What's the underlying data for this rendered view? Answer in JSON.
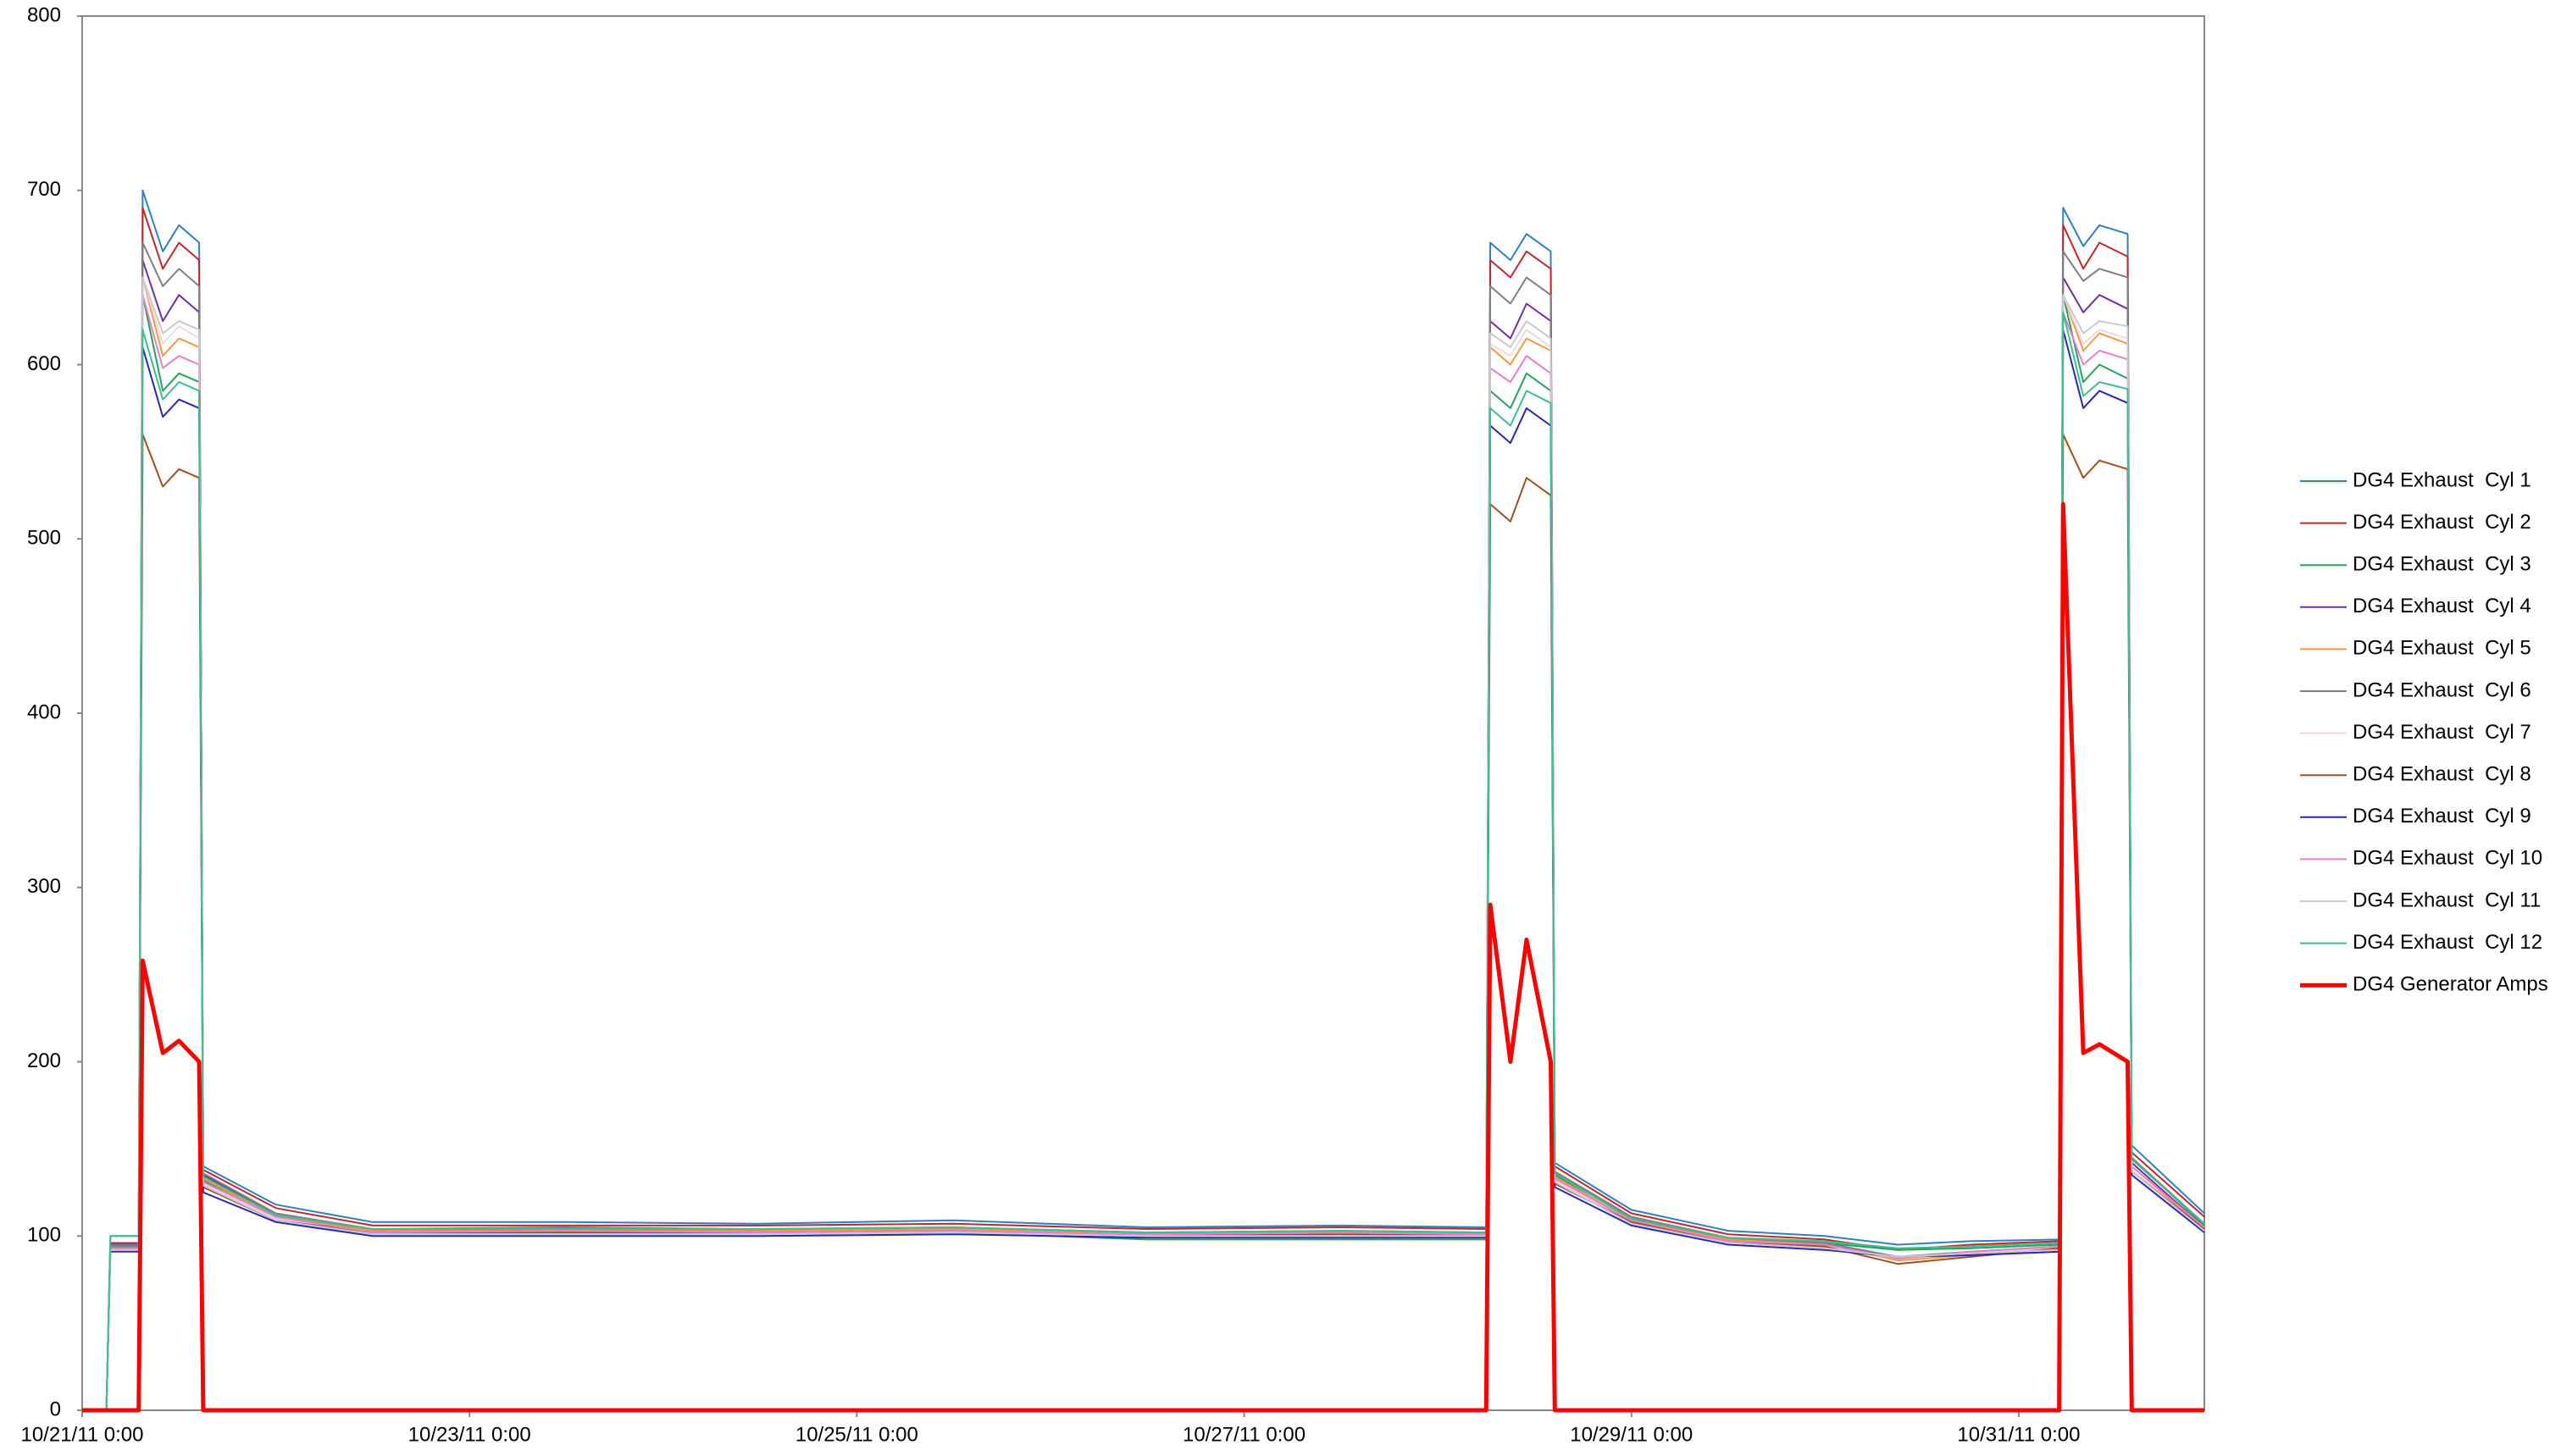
{
  "chart_data": {
    "type": "line",
    "x": [
      "2011-10-21T00:00",
      "2011-10-21T03:00",
      "2011-10-21T03:30",
      "2011-10-21T07:00",
      "2011-10-21T07:30",
      "2011-10-21T10:00",
      "2011-10-21T12:00",
      "2011-10-21T14:30",
      "2011-10-21T15:00",
      "2011-10-22T00:00",
      "2011-10-22T12:00",
      "2011-10-23T12:00",
      "2011-10-24T12:00",
      "2011-10-25T12:00",
      "2011-10-26T12:00",
      "2011-10-27T12:00",
      "2011-10-28T06:00",
      "2011-10-28T06:30",
      "2011-10-28T09:00",
      "2011-10-28T11:00",
      "2011-10-28T14:00",
      "2011-10-28T14:30",
      "2011-10-29T00:00",
      "2011-10-29T12:00",
      "2011-10-30T00:00",
      "2011-10-30T09:00",
      "2011-10-30T18:00",
      "2011-10-31T05:00",
      "2011-10-31T05:30",
      "2011-10-31T08:00",
      "2011-10-31T10:00",
      "2011-10-31T13:30",
      "2011-10-31T14:00",
      "2011-10-31T23:00"
    ],
    "xlim": [
      "2011-10-21T00:00",
      "2011-10-31T23:00"
    ],
    "xticks": [
      {
        "value": "2011-10-21T00:00",
        "label": "10/21/11 0:00"
      },
      {
        "value": "2011-10-23T00:00",
        "label": "10/23/11 0:00"
      },
      {
        "value": "2011-10-25T00:00",
        "label": "10/25/11 0:00"
      },
      {
        "value": "2011-10-27T00:00",
        "label": "10/27/11 0:00"
      },
      {
        "value": "2011-10-29T00:00",
        "label": "10/29/11 0:00"
      },
      {
        "value": "2011-10-31T00:00",
        "label": "10/31/11 0:00"
      }
    ],
    "ylim": [
      0,
      800
    ],
    "yticks": [
      0,
      100,
      200,
      300,
      400,
      500,
      600,
      700,
      800
    ],
    "grid": false,
    "legend": "right",
    "series": [
      {
        "name": "DG4 Exhaust  Cyl 1",
        "color": "#2f7fc4",
        "width": 2,
        "values": [
          0,
          0,
          95,
          95,
          700,
          665,
          680,
          670,
          140,
          118,
          108,
          108,
          107,
          109,
          105,
          106,
          105,
          670,
          660,
          675,
          665,
          142,
          115,
          103,
          100,
          95,
          97,
          98,
          690,
          668,
          680,
          675,
          152,
          113
        ]
      },
      {
        "name": "DG4 Exhaust  Cyl 2",
        "color": "#c0282d",
        "width": 2,
        "values": [
          0,
          0,
          96,
          96,
          690,
          655,
          670,
          660,
          138,
          116,
          106,
          106,
          106,
          107,
          104,
          105,
          104,
          660,
          650,
          665,
          655,
          140,
          113,
          101,
          98,
          92,
          95,
          97,
          680,
          655,
          670,
          662,
          148,
          111
        ]
      },
      {
        "name": "DG4 Exhaust  Cyl 3",
        "color": "#27a060",
        "width": 2,
        "values": [
          0,
          0,
          100,
          100,
          640,
          585,
          595,
          590,
          132,
          110,
          100,
          100,
          100,
          102,
          98,
          98,
          98,
          585,
          575,
          595,
          585,
          135,
          108,
          98,
          96,
          92,
          93,
          95,
          640,
          590,
          600,
          592,
          145,
          106
        ]
      },
      {
        "name": "DG4 Exhaust  Cyl 4",
        "color": "#7030a0",
        "width": 2,
        "values": [
          0,
          0,
          93,
          93,
          660,
          625,
          640,
          630,
          135,
          112,
          103,
          104,
          103,
          104,
          101,
          102,
          101,
          625,
          615,
          635,
          625,
          136,
          110,
          98,
          95,
          88,
          90,
          93,
          650,
          630,
          640,
          632,
          142,
          105
        ]
      },
      {
        "name": "DG4 Exhaust  Cyl 5",
        "color": "#f79646",
        "width": 2,
        "values": [
          0,
          0,
          94,
          94,
          650,
          605,
          615,
          610,
          133,
          111,
          103,
          103,
          103,
          104,
          101,
          102,
          101,
          610,
          600,
          615,
          608,
          134,
          109,
          98,
          95,
          86,
          89,
          94,
          640,
          608,
          618,
          612,
          140,
          104
        ]
      },
      {
        "name": "DG4 Exhaust  Cyl 6",
        "color": "#808080",
        "width": 2,
        "values": [
          0,
          0,
          94,
          94,
          670,
          645,
          655,
          645,
          136,
          113,
          104,
          105,
          104,
          105,
          102,
          103,
          102,
          645,
          635,
          650,
          640,
          137,
          111,
          99,
          96,
          88,
          91,
          94,
          665,
          648,
          655,
          650,
          145,
          107
        ]
      },
      {
        "name": "DG4 Exhaust  Cyl 7",
        "color": "#f2d8dc",
        "width": 2,
        "values": [
          0,
          0,
          92,
          92,
          650,
          612,
          622,
          615,
          130,
          110,
          101,
          102,
          101,
          102,
          100,
          101,
          100,
          612,
          605,
          620,
          610,
          132,
          108,
          96,
          94,
          87,
          90,
          93,
          640,
          612,
          620,
          615,
          138,
          103
        ]
      },
      {
        "name": "DG4 Exhaust  Cyl 8",
        "color": "#a0501e",
        "width": 2,
        "values": [
          0,
          0,
          93,
          93,
          560,
          530,
          540,
          535,
          128,
          109,
          102,
          102,
          102,
          103,
          100,
          101,
          100,
          520,
          510,
          535,
          525,
          130,
          108,
          97,
          94,
          84,
          88,
          93,
          560,
          535,
          545,
          540,
          137,
          104
        ]
      },
      {
        "name": "DG4 Exhaust  Cyl 9",
        "color": "#2828b4",
        "width": 2,
        "values": [
          0,
          0,
          91,
          91,
          610,
          570,
          580,
          575,
          125,
          108,
          100,
          100,
          100,
          101,
          99,
          99,
          99,
          565,
          555,
          575,
          565,
          128,
          106,
          95,
          92,
          88,
          89,
          91,
          620,
          575,
          585,
          578,
          135,
          102
        ]
      },
      {
        "name": "DG4 Exhaust  Cyl 10",
        "color": "#e77fc8",
        "width": 2,
        "values": [
          0,
          0,
          93,
          93,
          640,
          598,
          605,
          600,
          131,
          111,
          102,
          103,
          102,
          103,
          101,
          102,
          101,
          598,
          590,
          605,
          595,
          133,
          109,
          97,
          95,
          87,
          91,
          94,
          630,
          600,
          608,
          603,
          140,
          105
        ]
      },
      {
        "name": "DG4 Exhaust  Cyl 11",
        "color": "#c8c8d8",
        "width": 2,
        "values": [
          0,
          0,
          92,
          92,
          650,
          618,
          625,
          620,
          129,
          109,
          101,
          101,
          101,
          102,
          100,
          100,
          100,
          618,
          610,
          625,
          615,
          131,
          107,
          96,
          93,
          88,
          90,
          92,
          640,
          618,
          625,
          622,
          137,
          103
        ]
      },
      {
        "name": "DG4 Exhaust  Cyl 12",
        "color": "#3cbf8c",
        "width": 2,
        "values": [
          0,
          0,
          100,
          100,
          620,
          580,
          590,
          585,
          134,
          112,
          104,
          104,
          104,
          105,
          102,
          103,
          102,
          575,
          565,
          585,
          578,
          136,
          110,
          99,
          97,
          93,
          94,
          96,
          630,
          582,
          590,
          586,
          144,
          107
        ]
      },
      {
        "name": "DG4 Generator Amps",
        "color": "#ff0000",
        "width": 5,
        "values": [
          0,
          0,
          0,
          0,
          258,
          205,
          212,
          200,
          0,
          0,
          0,
          0,
          0,
          0,
          0,
          0,
          0,
          290,
          200,
          270,
          200,
          0,
          0,
          0,
          0,
          0,
          0,
          0,
          520,
          205,
          210,
          200,
          0,
          0
        ]
      }
    ]
  }
}
